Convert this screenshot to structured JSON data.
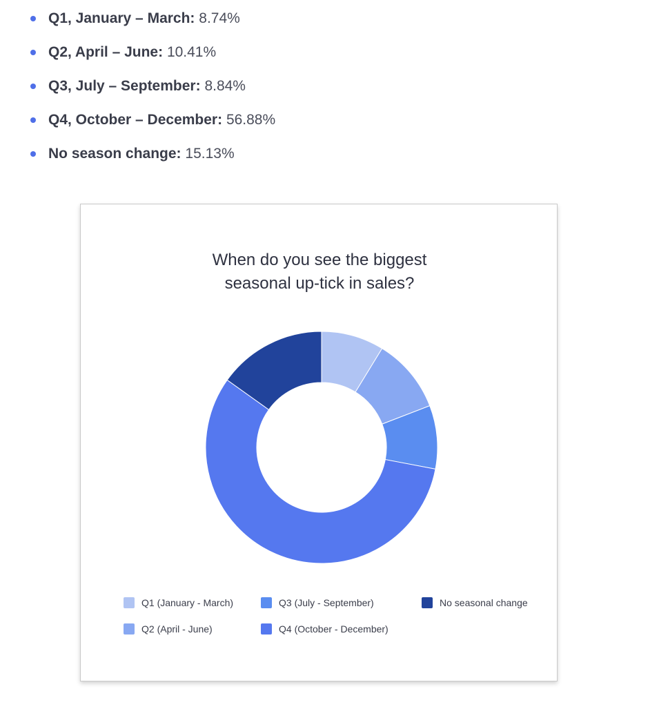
{
  "bullets": [
    {
      "label": "Q1, January – March:",
      "value": "8.74%"
    },
    {
      "label": "Q2, April – June:",
      "value": "10.41%"
    },
    {
      "label": "Q3, July – September:",
      "value": "8.84%"
    },
    {
      "label": "Q4, October – December:",
      "value": "56.88%"
    },
    {
      "label": "No season change:",
      "value": "15.13%"
    }
  ],
  "colors": {
    "bullet": "#4f6fe8",
    "q1": "#b0c4f3",
    "q2": "#88a8f2",
    "q3": "#5a8df0",
    "q4": "#5578ef",
    "none": "#21439b"
  },
  "chart_data": {
    "type": "pie",
    "style": "donut",
    "title_line1": "When do you see the biggest",
    "title_line2": "seasonal up-tick in sales?",
    "categories": [
      "Q1 (January - March)",
      "Q2 (April - June)",
      "Q3 (July - September)",
      "Q4 (October - December)",
      "No seasonal change"
    ],
    "values": [
      8.74,
      10.41,
      8.84,
      56.88,
      15.13
    ],
    "legend_placement": "bottom"
  }
}
